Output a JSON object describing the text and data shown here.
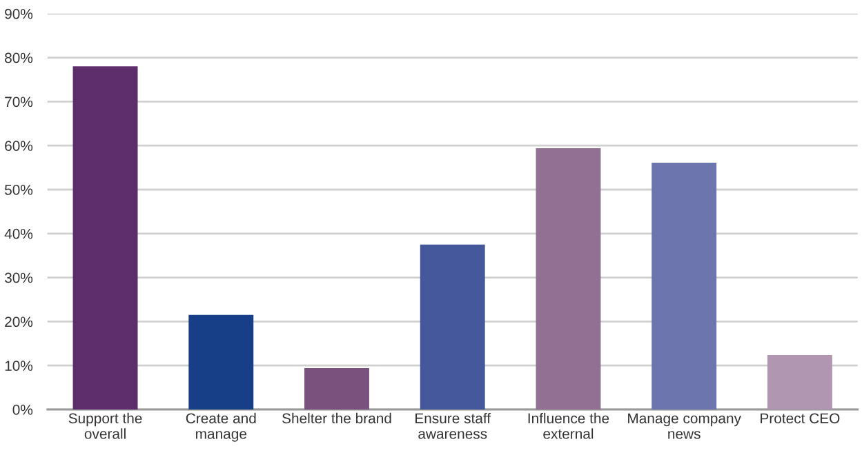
{
  "chart_data": {
    "type": "bar",
    "categories": [
      "Support the\noverall",
      "Create and\nmanage",
      "Shelter the brand",
      "Ensure staff\nawareness",
      "Influence the\nexternal",
      "Manage company\nnews",
      "Protect CEO"
    ],
    "values": [
      78,
      21.5,
      9.4,
      37.5,
      59.4,
      56.1,
      12.4
    ],
    "colors": [
      "#5e2d6b",
      "#173f87",
      "#7a507c",
      "#45589c",
      "#917093",
      "#6c75ad",
      "#b096b0"
    ],
    "ylim": [
      0,
      90
    ],
    "yticks": [
      {
        "value": 0,
        "label": "0%"
      },
      {
        "value": 10,
        "label": "10%"
      },
      {
        "value": 20,
        "label": "20%"
      },
      {
        "value": 30,
        "label": "30%"
      },
      {
        "value": 40,
        "label": "40%"
      },
      {
        "value": 50,
        "label": "50%"
      },
      {
        "value": 60,
        "label": "60%"
      },
      {
        "value": 70,
        "label": "70%"
      },
      {
        "value": 80,
        "label": "80%"
      },
      {
        "value": 90,
        "label": "90%"
      }
    ],
    "grid": "y"
  }
}
